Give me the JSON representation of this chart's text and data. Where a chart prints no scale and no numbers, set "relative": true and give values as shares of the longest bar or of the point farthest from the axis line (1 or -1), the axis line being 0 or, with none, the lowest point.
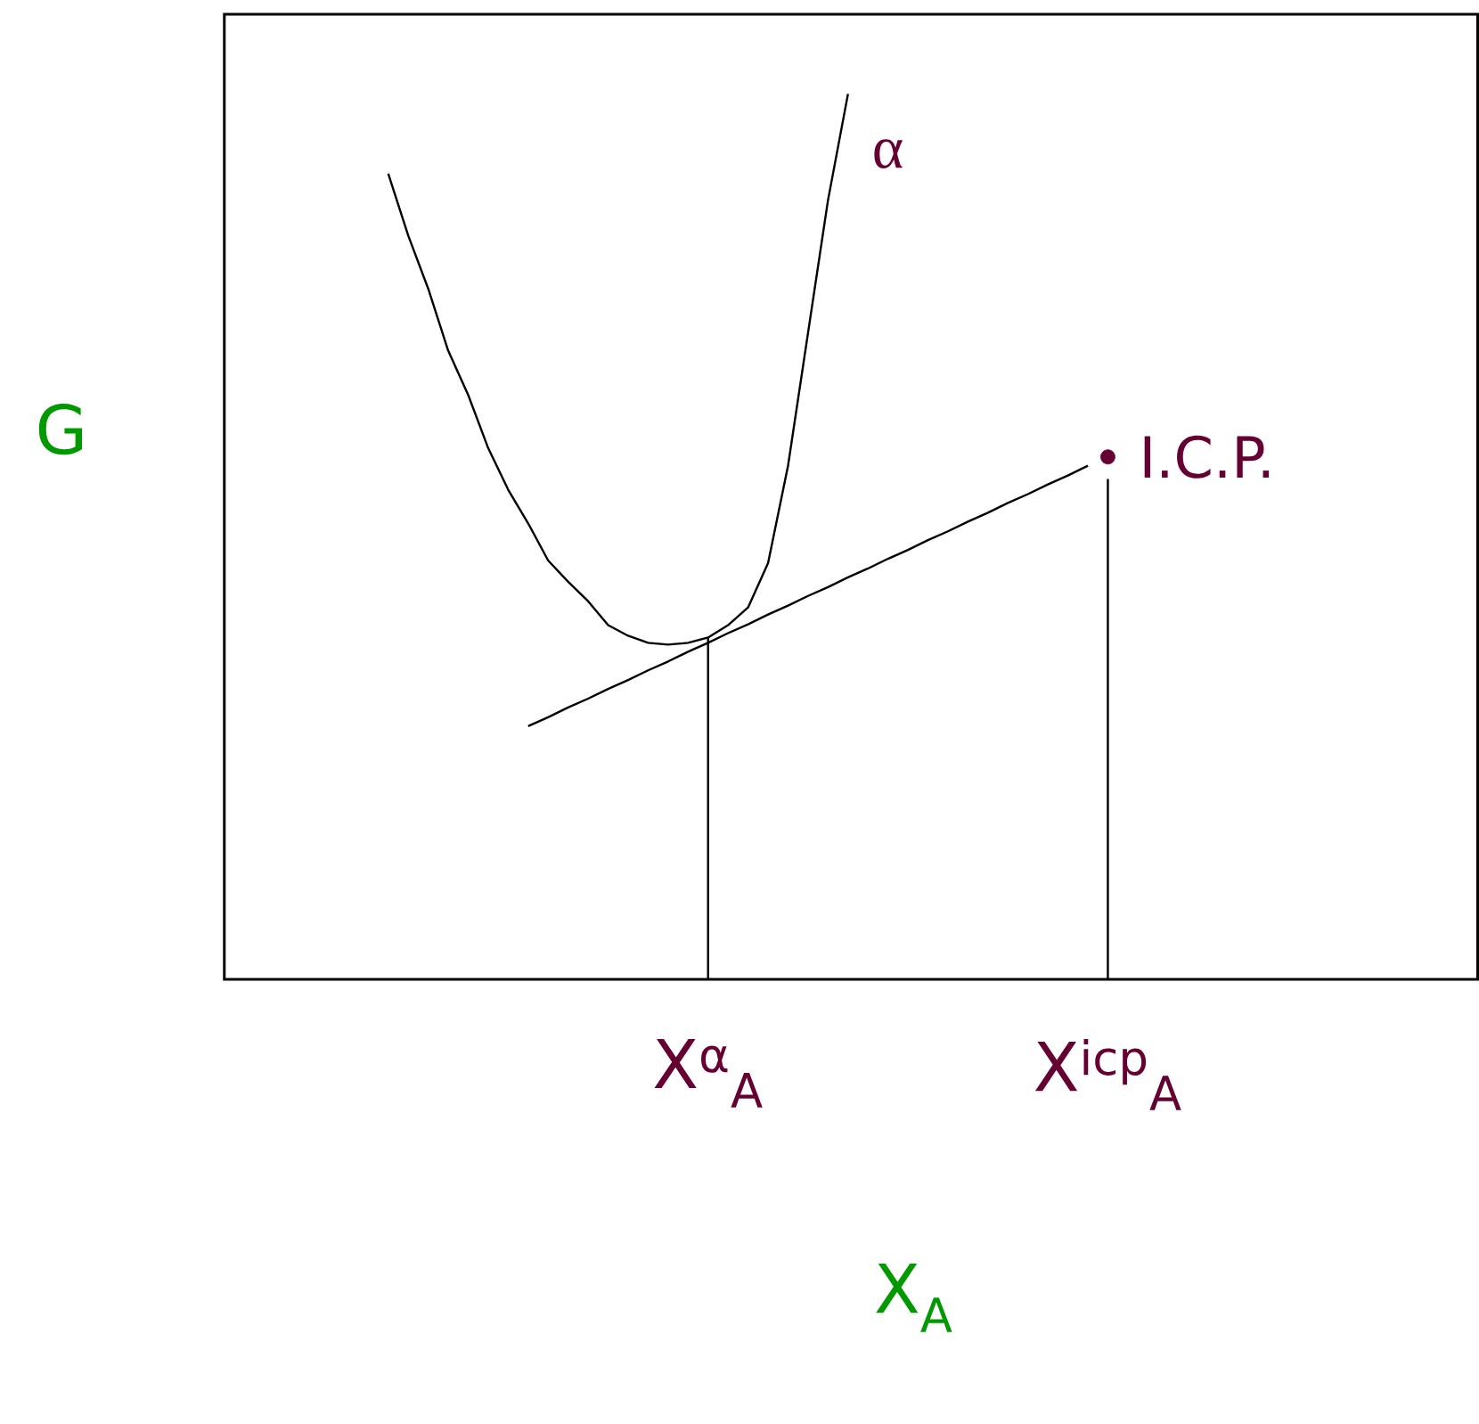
{
  "chart_data": {
    "type": "line",
    "relative": true,
    "xlabel": "X$_{A}$",
    "ylabel": "G",
    "categories": [
      null,
      null,
      null,
      null,
      null,
      null,
      null,
      null,
      null,
      null,
      null,
      null,
      null,
      null,
      null,
      null,
      "X$^{α}$$_{A}$",
      null,
      null,
      null,
      null,
      null,
      null,
      null,
      null,
      null,
      null,
      null,
      null,
      null,
      null,
      null,
      null,
      null,
      null,
      null,
      "X$^{icp}$$_{A}$"
    ],
    "tick_labels": "x",
    "legend": false,
    "series": [
      {
        "name": "α",
        "color": "#000000",
        "values": [
          0.91,
          0.84,
          0.78,
          0.71,
          0.66,
          0.6,
          0.553,
          0.515,
          0.473,
          0.449,
          0.427,
          0.4,
          0.388,
          0.38,
          0.378,
          0.38,
          0.386,
          0.4,
          0.42,
          0.47,
          0.58,
          0.73,
          0.88,
          1.0,
          null,
          null,
          null,
          null,
          null,
          null,
          null,
          null,
          null,
          null,
          null,
          null,
          null
        ]
      },
      {
        "color": "#000000",
        "values": [
          null,
          null,
          null,
          null,
          null,
          null,
          null,
          0.286,
          0.296,
          0.307,
          0.317,
          0.328,
          0.338,
          0.349,
          0.359,
          0.37,
          0.38,
          0.391,
          0.401,
          0.412,
          0.422,
          0.433,
          0.443,
          0.454,
          0.464,
          0.475,
          0.485,
          0.496,
          0.506,
          0.517,
          0.527,
          0.538,
          0.548,
          0.559,
          0.569,
          0.58,
          null
        ]
      },
      {
        "type": "bar",
        "color": "#000000",
        "values": [
          null,
          null,
          null,
          null,
          null,
          null,
          null,
          null,
          null,
          null,
          null,
          null,
          null,
          null,
          null,
          null,
          0.386,
          null,
          null,
          null,
          null,
          null,
          null,
          null,
          null,
          null,
          null,
          null,
          null,
          null,
          null,
          null,
          null,
          null,
          null,
          null,
          0.565
        ]
      },
      {
        "name": "I.C.P.",
        "type": "scatter",
        "marker": "circle",
        "color": "#660033",
        "values": [
          null,
          null,
          null,
          null,
          null,
          null,
          null,
          null,
          null,
          null,
          null,
          null,
          null,
          null,
          null,
          null,
          null,
          null,
          null,
          null,
          null,
          null,
          null,
          null,
          null,
          null,
          null,
          null,
          null,
          null,
          null,
          null,
          null,
          null,
          null,
          null,
          0.59
        ]
      }
    ]
  }
}
